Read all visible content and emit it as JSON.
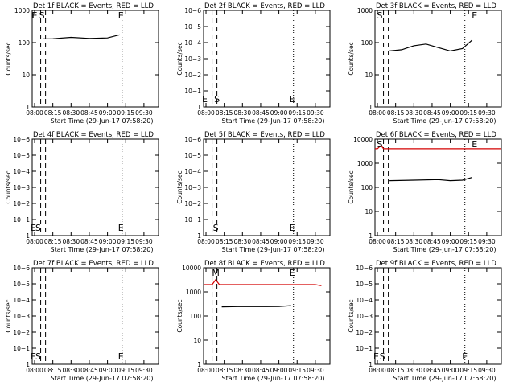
{
  "figure": {
    "x_axis_label": "Start Time (29-Jun-17 07:58:20)",
    "y_axis_label": "Counts/sec",
    "x_tick_labels": [
      "08:00",
      "08:15",
      "08:30",
      "08:45",
      "09:00",
      "09:15",
      "09:30"
    ]
  },
  "chart_data": [
    {
      "type": "line",
      "title": "Det 1f BLACK = Events, RED = LLD",
      "xlabel": "Start Time (29-Jun-17 07:58:20)",
      "ylabel": "Counts/sec",
      "xlim": [
        "07:58",
        "09:42"
      ],
      "yscale": "log",
      "ylim": [
        1,
        1000
      ],
      "y_tick_labels": [
        "1",
        "10",
        "100",
        "1000"
      ],
      "markers": [
        {
          "label": "E",
          "time": "08:00"
        },
        {
          "label": "S",
          "time": "08:06"
        },
        {
          "label": "E",
          "time": "09:11"
        }
      ],
      "series": [
        {
          "color": "#000000",
          "x": [
            "08:07",
            "08:15",
            "08:30",
            "08:45",
            "09:00",
            "09:10"
          ],
          "y": [
            130,
            132,
            145,
            135,
            140,
            175
          ]
        }
      ]
    },
    {
      "type": "line",
      "title": "Det 2f BLACK = Events, RED = LLD",
      "xlabel": "Start Time (29-Jun-17 07:58:20)",
      "ylabel": "Counts/sec",
      "xlim": [
        "07:58",
        "09:42"
      ],
      "yscale": "log",
      "ylim": [
        1,
        1e-06
      ],
      "y_tick_labels": [
        "1",
        "10−1",
        "10−2",
        "10−3",
        "10−4",
        "10−5",
        "10−6"
      ],
      "markers": [
        {
          "label": "E",
          "time": "07:59"
        },
        {
          "label": "S",
          "time": "08:09"
        },
        {
          "label": "E",
          "time": "09:11"
        }
      ],
      "series": []
    },
    {
      "type": "line",
      "title": "Det 3f BLACK = Events, RED = LLD",
      "xlabel": "Start Time (29-Jun-17 07:58:20)",
      "ylabel": "Counts/sec",
      "xlim": [
        "07:58",
        "09:42"
      ],
      "yscale": "log",
      "ylim": [
        1,
        1000
      ],
      "y_tick_labels": [
        "1",
        "10",
        "100",
        "1000"
      ],
      "markers": [
        {
          "label": "S",
          "time": "08:02"
        },
        {
          "label": "E",
          "time": "09:20"
        }
      ],
      "series": [
        {
          "color": "#000000",
          "x": [
            "08:10",
            "08:20",
            "08:30",
            "08:40",
            "08:50",
            "09:00",
            "09:10",
            "09:18"
          ],
          "y": [
            55,
            60,
            80,
            90,
            70,
            55,
            65,
            120
          ]
        }
      ]
    },
    {
      "type": "line",
      "title": "Det 4f BLACK = Events, RED = LLD",
      "xlabel": "Start Time (29-Jun-17 07:58:20)",
      "ylabel": "Counts/sec",
      "xlim": [
        "07:58",
        "09:42"
      ],
      "yscale": "log",
      "ylim": [
        1,
        1e-06
      ],
      "y_tick_labels": [
        "1",
        "10−1",
        "10−2",
        "10−3",
        "10−4",
        "10−5",
        "10−6"
      ],
      "markers": [
        {
          "label": "E",
          "time": "07:59"
        },
        {
          "label": "S",
          "time": "08:03"
        },
        {
          "label": "E",
          "time": "09:11"
        }
      ],
      "series": []
    },
    {
      "type": "line",
      "title": "Det 5f BLACK = Events, RED = LLD",
      "xlabel": "Start Time (29-Jun-17 07:58:20)",
      "ylabel": "Counts/sec",
      "xlim": [
        "07:58",
        "09:42"
      ],
      "yscale": "log",
      "ylim": [
        1,
        1e-06
      ],
      "y_tick_labels": [
        "1",
        "10−1",
        "10−2",
        "10−3",
        "10−4",
        "10−5",
        "10−6"
      ],
      "markers": [
        {
          "label": "S",
          "time": "08:08"
        },
        {
          "label": "E",
          "time": "09:11"
        }
      ],
      "series": []
    },
    {
      "type": "line",
      "title": "Det 6f BLACK = Events, RED = LLD",
      "xlabel": "Start Time (29-Jun-17 07:58:20)",
      "ylabel": "Counts/sec",
      "xlim": [
        "07:58",
        "09:42"
      ],
      "yscale": "log",
      "ylim": [
        1,
        10000
      ],
      "y_tick_labels": [
        "1",
        "10",
        "100",
        "1000",
        "10000"
      ],
      "markers": [
        {
          "label": "S",
          "time": "08:02"
        },
        {
          "label": "E",
          "time": "09:20"
        }
      ],
      "series": [
        {
          "color": "#000000",
          "x": [
            "08:10",
            "08:30",
            "08:50",
            "09:00",
            "09:10",
            "09:18"
          ],
          "y": [
            190,
            200,
            210,
            190,
            200,
            260
          ]
        },
        {
          "color": "#d40000",
          "x": [
            "07:58",
            "08:00",
            "08:03",
            "08:05",
            "09:42"
          ],
          "y": [
            4000,
            4000,
            5500,
            4000,
            4000
          ]
        }
      ]
    },
    {
      "type": "line",
      "title": "Det 7f BLACK = Events, RED = LLD",
      "xlabel": "Start Time (29-Jun-17 07:58:20)",
      "ylabel": "Counts/sec",
      "xlim": [
        "07:58",
        "09:42"
      ],
      "yscale": "log",
      "ylim": [
        1,
        1e-06
      ],
      "y_tick_labels": [
        "1",
        "10−1",
        "10−2",
        "10−3",
        "10−4",
        "10−5",
        "10−6"
      ],
      "markers": [
        {
          "label": "E",
          "time": "07:59"
        },
        {
          "label": "S",
          "time": "08:03"
        },
        {
          "label": "E",
          "time": "09:11"
        }
      ],
      "series": []
    },
    {
      "type": "line",
      "title": "Det 8f BLACK = Events, RED = LLD",
      "xlabel": "Start Time (29-Jun-17 07:58:20)",
      "ylabel": "Counts/sec",
      "xlim": [
        "07:58",
        "09:42"
      ],
      "yscale": "log",
      "ylim": [
        1,
        10000
      ],
      "y_tick_labels": [
        "1",
        "10",
        "100",
        "1000",
        "10000"
      ],
      "markers": [
        {
          "label": "M",
          "time": "08:08"
        },
        {
          "label": "E",
          "time": "09:11"
        }
      ],
      "series": [
        {
          "color": "#000000",
          "x": [
            "08:13",
            "08:30",
            "08:50",
            "09:00",
            "09:10"
          ],
          "y": [
            240,
            250,
            245,
            250,
            270
          ]
        },
        {
          "color": "#d40000",
          "x": [
            "07:58",
            "08:05",
            "08:08",
            "08:11",
            "09:10",
            "09:30",
            "09:35"
          ],
          "y": [
            2000,
            2000,
            3200,
            2000,
            2000,
            2000,
            1800
          ]
        }
      ]
    },
    {
      "type": "line",
      "title": "Det 9f BLACK = Events, RED = LLD",
      "xlabel": "Start Time (29-Jun-17 07:58:20)",
      "ylabel": "Counts/sec",
      "xlim": [
        "07:58",
        "09:42"
      ],
      "yscale": "log",
      "ylim": [
        1,
        1e-06
      ],
      "y_tick_labels": [
        "1",
        "10−1",
        "10−2",
        "10−3",
        "10−4",
        "10−5",
        "10−6"
      ],
      "markers": [
        {
          "label": "E",
          "time": "07:59"
        },
        {
          "label": "S",
          "time": "08:04"
        },
        {
          "label": "E",
          "time": "09:12"
        }
      ],
      "series": []
    }
  ]
}
